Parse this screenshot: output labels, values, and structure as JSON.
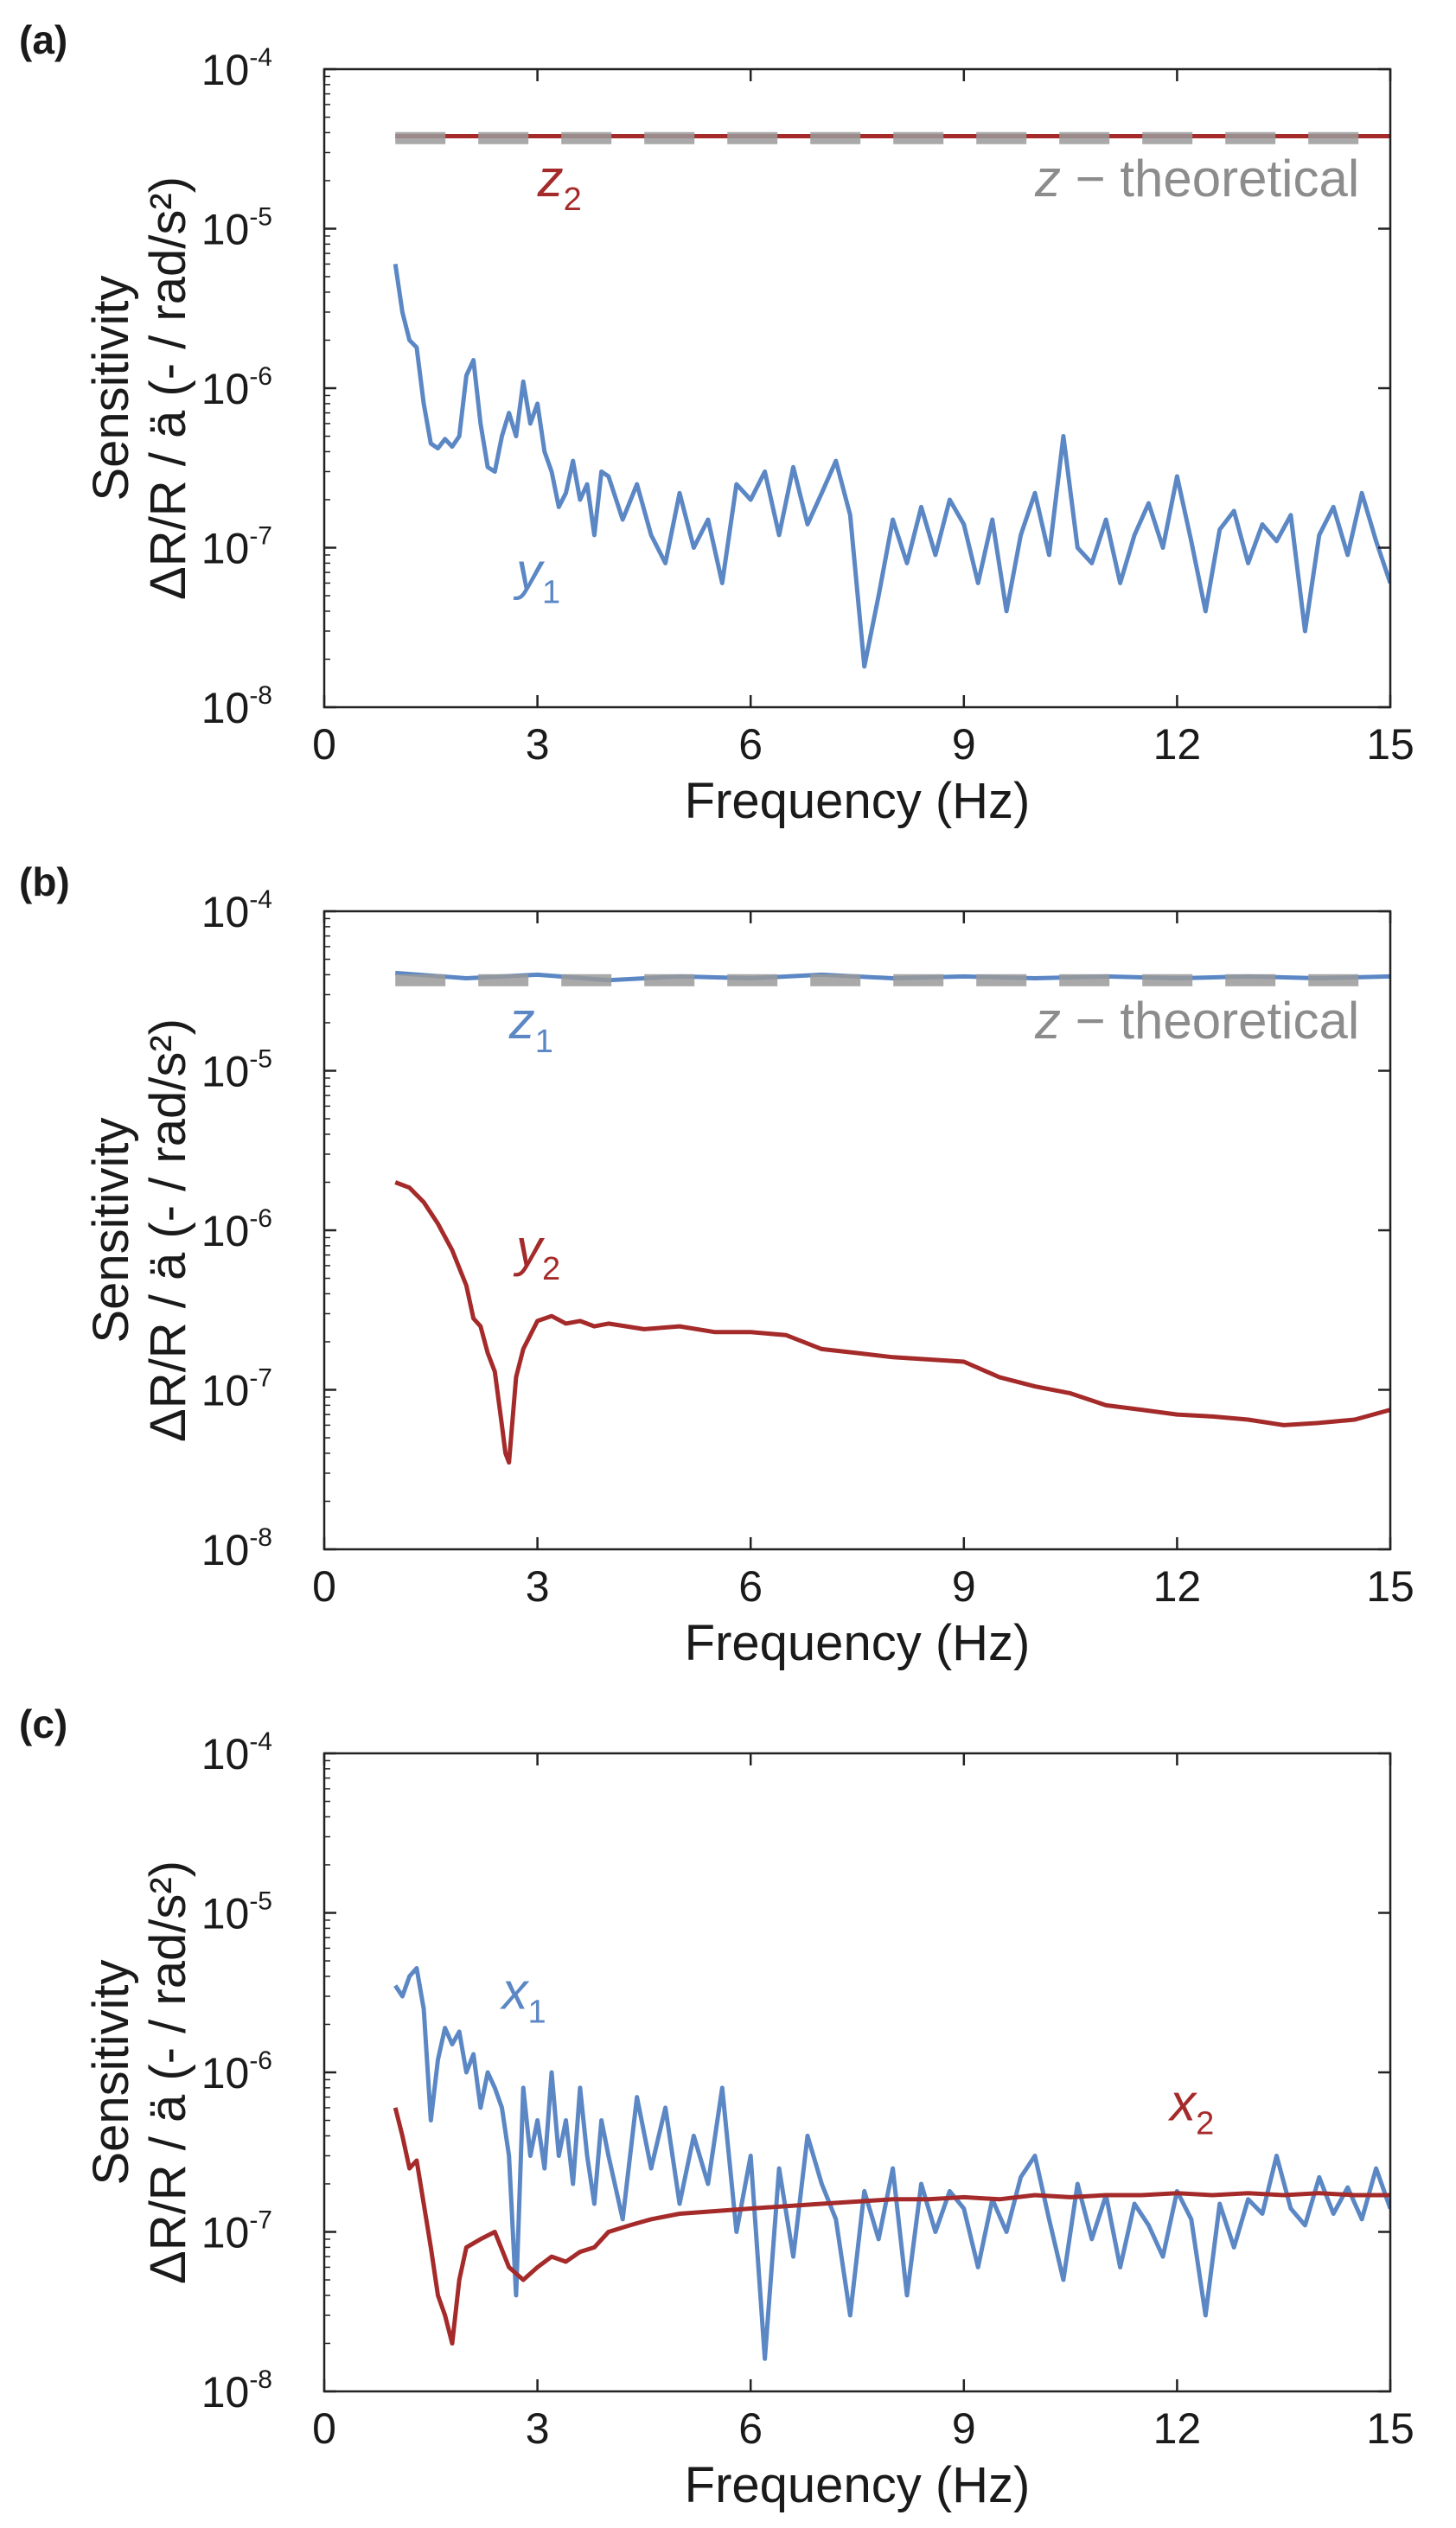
{
  "chart_data": [
    {
      "panel_label": "(a)",
      "type": "line",
      "xlabel": "Frequency (Hz)",
      "ylabel": [
        "Sensitivity",
        "ΔR/R / ä (- / rad/s²)"
      ],
      "yscale": "log",
      "xlim": [
        0,
        15
      ],
      "ylim": [
        1e-08,
        0.0001
      ],
      "xticks": [
        "0",
        "3",
        "6",
        "9",
        "12",
        "15"
      ],
      "yticks": [
        {
          "base": "10",
          "exp": "-8"
        },
        {
          "base": "10",
          "exp": "-7"
        },
        {
          "base": "10",
          "exp": "-6"
        },
        {
          "base": "10",
          "exp": "-5"
        },
        {
          "base": "10",
          "exp": "-4"
        }
      ],
      "grid": false,
      "annotations": [
        {
          "sym": "z",
          "sub": "2",
          "color": "#a52a2a",
          "x": 3.0,
          "y": 1.6e-05
        },
        {
          "sym": "z",
          "sub": "",
          "text": " − theoretical",
          "color": "#8c8c8c",
          "x": 10.0,
          "y": 1.6e-05
        },
        {
          "sym": "y",
          "sub": "1",
          "color": "#5b87c5",
          "x": 2.7,
          "y": 5.5e-08
        }
      ],
      "series": [
        {
          "color": "#a52a2a",
          "style": "solid",
          "x": [
            1,
            15
          ],
          "y": [
            3.8e-05,
            3.8e-05
          ]
        },
        {
          "color": "#9a9a9a",
          "style": "dashed",
          "x": [
            1,
            15
          ],
          "y": [
            3.7e-05,
            3.7e-05
          ]
        },
        {
          "color": "#5b87c5",
          "style": "solid",
          "x": [
            1.0,
            1.1,
            1.2,
            1.3,
            1.4,
            1.5,
            1.6,
            1.7,
            1.8,
            1.9,
            2.0,
            2.1,
            2.2,
            2.3,
            2.4,
            2.5,
            2.6,
            2.7,
            2.8,
            2.9,
            3.0,
            3.1,
            3.2,
            3.3,
            3.4,
            3.5,
            3.6,
            3.7,
            3.8,
            3.9,
            4.0,
            4.2,
            4.4,
            4.6,
            4.8,
            5.0,
            5.2,
            5.4,
            5.6,
            5.8,
            6.0,
            6.2,
            6.4,
            6.6,
            6.8,
            7.0,
            7.2,
            7.4,
            7.6,
            7.8,
            8.0,
            8.2,
            8.4,
            8.6,
            8.8,
            9.0,
            9.2,
            9.4,
            9.6,
            9.8,
            10.0,
            10.2,
            10.4,
            10.6,
            10.8,
            11.0,
            11.2,
            11.4,
            11.6,
            11.8,
            12.0,
            12.2,
            12.4,
            12.6,
            12.8,
            13.0,
            13.2,
            13.4,
            13.6,
            13.8,
            14.0,
            14.2,
            14.4,
            14.6,
            14.8,
            15.0
          ],
          "y": [
            6e-06,
            3e-06,
            2e-06,
            1.8e-06,
            8e-07,
            4.5e-07,
            4.2e-07,
            4.8e-07,
            4.3e-07,
            5e-07,
            1.2e-06,
            1.5e-06,
            6e-07,
            3.2e-07,
            3e-07,
            5e-07,
            7e-07,
            5e-07,
            1.1e-06,
            6e-07,
            8e-07,
            4e-07,
            3e-07,
            1.8e-07,
            2.2e-07,
            3.5e-07,
            2e-07,
            2.5e-07,
            1.2e-07,
            3e-07,
            2.8e-07,
            1.5e-07,
            2.5e-07,
            1.2e-07,
            8e-08,
            2.2e-07,
            1e-07,
            1.5e-07,
            6e-08,
            2.5e-07,
            2e-07,
            3e-07,
            1.2e-07,
            3.2e-07,
            1.4e-07,
            2.2e-07,
            3.5e-07,
            1.6e-07,
            1.8e-08,
            5e-08,
            1.5e-07,
            8e-08,
            1.8e-07,
            9e-08,
            2e-07,
            1.4e-07,
            6e-08,
            1.5e-07,
            4e-08,
            1.2e-07,
            2.2e-07,
            9e-08,
            5e-07,
            1e-07,
            8e-08,
            1.5e-07,
            6e-08,
            1.2e-07,
            1.9e-07,
            1e-07,
            2.8e-07,
            1.1e-07,
            4e-08,
            1.3e-07,
            1.7e-07,
            8e-08,
            1.4e-07,
            1.1e-07,
            1.6e-07,
            3e-08,
            1.2e-07,
            1.8e-07,
            9e-08,
            2.2e-07,
            1.1e-07,
            6e-08
          ]
        }
      ]
    },
    {
      "panel_label": "(b)",
      "type": "line",
      "xlabel": "Frequency (Hz)",
      "ylabel": [
        "Sensitivity",
        "ΔR/R / ä (- / rad/s²)"
      ],
      "yscale": "log",
      "xlim": [
        0,
        15
      ],
      "ylim": [
        1e-08,
        0.0001
      ],
      "xticks": [
        "0",
        "3",
        "6",
        "9",
        "12",
        "15"
      ],
      "yticks": [
        {
          "base": "10",
          "exp": "-8"
        },
        {
          "base": "10",
          "exp": "-7"
        },
        {
          "base": "10",
          "exp": "-6"
        },
        {
          "base": "10",
          "exp": "-5"
        },
        {
          "base": "10",
          "exp": "-4"
        }
      ],
      "grid": false,
      "annotations": [
        {
          "sym": "z",
          "sub": "1",
          "color": "#5b87c5",
          "x": 2.6,
          "y": 1.6e-05
        },
        {
          "sym": "z",
          "sub": "",
          "text": " − theoretical",
          "color": "#8c8c8c",
          "x": 10.0,
          "y": 1.6e-05
        },
        {
          "sym": "y",
          "sub": "2",
          "color": "#a52a2a",
          "x": 2.7,
          "y": 6e-07
        }
      ],
      "series": [
        {
          "color": "#5b87c5",
          "style": "solid",
          "x": [
            1,
            2,
            3,
            4,
            5,
            6,
            7,
            8,
            9,
            10,
            11,
            12,
            13,
            14,
            15
          ],
          "y": [
            4.1e-05,
            3.8e-05,
            4e-05,
            3.7e-05,
            3.9e-05,
            3.8e-05,
            4e-05,
            3.8e-05,
            3.9e-05,
            3.8e-05,
            3.9e-05,
            3.8e-05,
            3.9e-05,
            3.8e-05,
            3.9e-05
          ]
        },
        {
          "color": "#9a9a9a",
          "style": "dashed",
          "x": [
            1,
            15
          ],
          "y": [
            3.7e-05,
            3.7e-05
          ]
        },
        {
          "color": "#a52a2a",
          "style": "solid",
          "x": [
            1.0,
            1.2,
            1.4,
            1.6,
            1.8,
            2.0,
            2.1,
            2.2,
            2.3,
            2.4,
            2.5,
            2.55,
            2.6,
            2.7,
            2.8,
            3.0,
            3.2,
            3.4,
            3.6,
            3.8,
            4.0,
            4.5,
            5.0,
            5.5,
            6.0,
            6.5,
            7.0,
            7.5,
            8.0,
            8.5,
            9.0,
            9.5,
            10.0,
            10.5,
            11.0,
            11.5,
            12.0,
            12.5,
            13.0,
            13.5,
            14.0,
            14.5,
            15.0
          ],
          "y": [
            2e-06,
            1.85e-06,
            1.5e-06,
            1.1e-06,
            7.5e-07,
            4.5e-07,
            2.8e-07,
            2.5e-07,
            1.7e-07,
            1.3e-07,
            6e-08,
            4e-08,
            3.5e-08,
            1.2e-07,
            1.8e-07,
            2.7e-07,
            2.9e-07,
            2.6e-07,
            2.7e-07,
            2.5e-07,
            2.6e-07,
            2.4e-07,
            2.5e-07,
            2.3e-07,
            2.3e-07,
            2.2e-07,
            1.8e-07,
            1.7e-07,
            1.6e-07,
            1.55e-07,
            1.5e-07,
            1.2e-07,
            1.05e-07,
            9.5e-08,
            8e-08,
            7.5e-08,
            7e-08,
            6.8e-08,
            6.5e-08,
            6e-08,
            6.2e-08,
            6.5e-08,
            7.5e-08
          ]
        }
      ]
    },
    {
      "panel_label": "(c)",
      "type": "line",
      "xlabel": "Frequency (Hz)",
      "ylabel": [
        "Sensitivity",
        "ΔR/R / ä (- / rad/s²)"
      ],
      "yscale": "log",
      "xlim": [
        0,
        15
      ],
      "ylim": [
        1e-08,
        0.0001
      ],
      "xticks": [
        "0",
        "3",
        "6",
        "9",
        "12",
        "15"
      ],
      "yticks": [
        {
          "base": "10",
          "exp": "-8"
        },
        {
          "base": "10",
          "exp": "-7"
        },
        {
          "base": "10",
          "exp": "-6"
        },
        {
          "base": "10",
          "exp": "-5"
        },
        {
          "base": "10",
          "exp": "-4"
        }
      ],
      "grid": false,
      "annotations": [
        {
          "sym": "x",
          "sub": "1",
          "color": "#5b87c5",
          "x": 2.5,
          "y": 2.5e-06
        },
        {
          "sym": "x",
          "sub": "2",
          "color": "#a52a2a",
          "x": 11.9,
          "y": 5e-07
        }
      ],
      "series": [
        {
          "color": "#5b87c5",
          "style": "solid",
          "x": [
            1.0,
            1.1,
            1.2,
            1.3,
            1.4,
            1.5,
            1.6,
            1.7,
            1.8,
            1.9,
            2.0,
            2.1,
            2.2,
            2.3,
            2.4,
            2.5,
            2.6,
            2.7,
            2.8,
            2.9,
            3.0,
            3.1,
            3.2,
            3.3,
            3.4,
            3.5,
            3.6,
            3.7,
            3.8,
            3.9,
            4.0,
            4.2,
            4.4,
            4.6,
            4.8,
            5.0,
            5.2,
            5.4,
            5.6,
            5.8,
            6.0,
            6.2,
            6.4,
            6.6,
            6.8,
            7.0,
            7.2,
            7.4,
            7.6,
            7.8,
            8.0,
            8.2,
            8.4,
            8.6,
            8.8,
            9.0,
            9.2,
            9.4,
            9.6,
            9.8,
            10.0,
            10.2,
            10.4,
            10.6,
            10.8,
            11.0,
            11.2,
            11.4,
            11.6,
            11.8,
            12.0,
            12.2,
            12.4,
            12.6,
            12.8,
            13.0,
            13.2,
            13.4,
            13.6,
            13.8,
            14.0,
            14.2,
            14.4,
            14.6,
            14.8,
            15.0
          ],
          "y": [
            3.5e-06,
            3e-06,
            4e-06,
            4.5e-06,
            2.5e-06,
            5e-07,
            1.2e-06,
            1.9e-06,
            1.5e-06,
            1.8e-06,
            1e-06,
            1.3e-06,
            6e-07,
            1e-06,
            8e-07,
            6e-07,
            3e-07,
            4e-08,
            8e-07,
            3e-07,
            5e-07,
            2.5e-07,
            1e-06,
            3e-07,
            5e-07,
            2e-07,
            8e-07,
            3e-07,
            1.5e-07,
            5e-07,
            3e-07,
            1.2e-07,
            7e-07,
            2.5e-07,
            6e-07,
            1.5e-07,
            4e-07,
            2e-07,
            8e-07,
            1e-07,
            3e-07,
            1.6e-08,
            2.5e-07,
            7e-08,
            4e-07,
            2e-07,
            1.2e-07,
            3e-08,
            1.8e-07,
            9e-08,
            2.5e-07,
            4e-08,
            2e-07,
            1e-07,
            1.8e-07,
            1.4e-07,
            6e-08,
            1.6e-07,
            1e-07,
            2.2e-07,
            3e-07,
            1.2e-07,
            5e-08,
            2e-07,
            9e-08,
            1.7e-07,
            6e-08,
            1.5e-07,
            1.1e-07,
            7e-08,
            1.8e-07,
            1.2e-07,
            3e-08,
            1.5e-07,
            8e-08,
            1.6e-07,
            1.3e-07,
            3e-07,
            1.4e-07,
            1.1e-07,
            2.2e-07,
            1.3e-07,
            1.9e-07,
            1.2e-07,
            2.5e-07,
            1.4e-07
          ]
        },
        {
          "color": "#a52a2a",
          "style": "solid",
          "x": [
            1.0,
            1.1,
            1.2,
            1.3,
            1.4,
            1.5,
            1.6,
            1.7,
            1.8,
            1.9,
            2.0,
            2.2,
            2.4,
            2.6,
            2.8,
            3.0,
            3.2,
            3.4,
            3.6,
            3.8,
            4.0,
            4.3,
            4.6,
            5.0,
            5.5,
            6.0,
            6.5,
            7.0,
            7.5,
            8.0,
            8.5,
            9.0,
            9.5,
            10.0,
            10.5,
            11.0,
            11.5,
            12.0,
            12.5,
            13.0,
            13.5,
            14.0,
            14.5,
            15.0
          ],
          "y": [
            6e-07,
            4e-07,
            2.5e-07,
            2.8e-07,
            1.5e-07,
            8e-08,
            4e-08,
            3e-08,
            2e-08,
            5e-08,
            8e-08,
            9e-08,
            1e-07,
            6e-08,
            5e-08,
            6e-08,
            7e-08,
            6.5e-08,
            7.5e-08,
            8e-08,
            1e-07,
            1.1e-07,
            1.2e-07,
            1.3e-07,
            1.35e-07,
            1.4e-07,
            1.45e-07,
            1.5e-07,
            1.55e-07,
            1.6e-07,
            1.6e-07,
            1.65e-07,
            1.6e-07,
            1.7e-07,
            1.65e-07,
            1.7e-07,
            1.7e-07,
            1.75e-07,
            1.7e-07,
            1.75e-07,
            1.7e-07,
            1.75e-07,
            1.7e-07,
            1.7e-07
          ]
        }
      ]
    }
  ]
}
